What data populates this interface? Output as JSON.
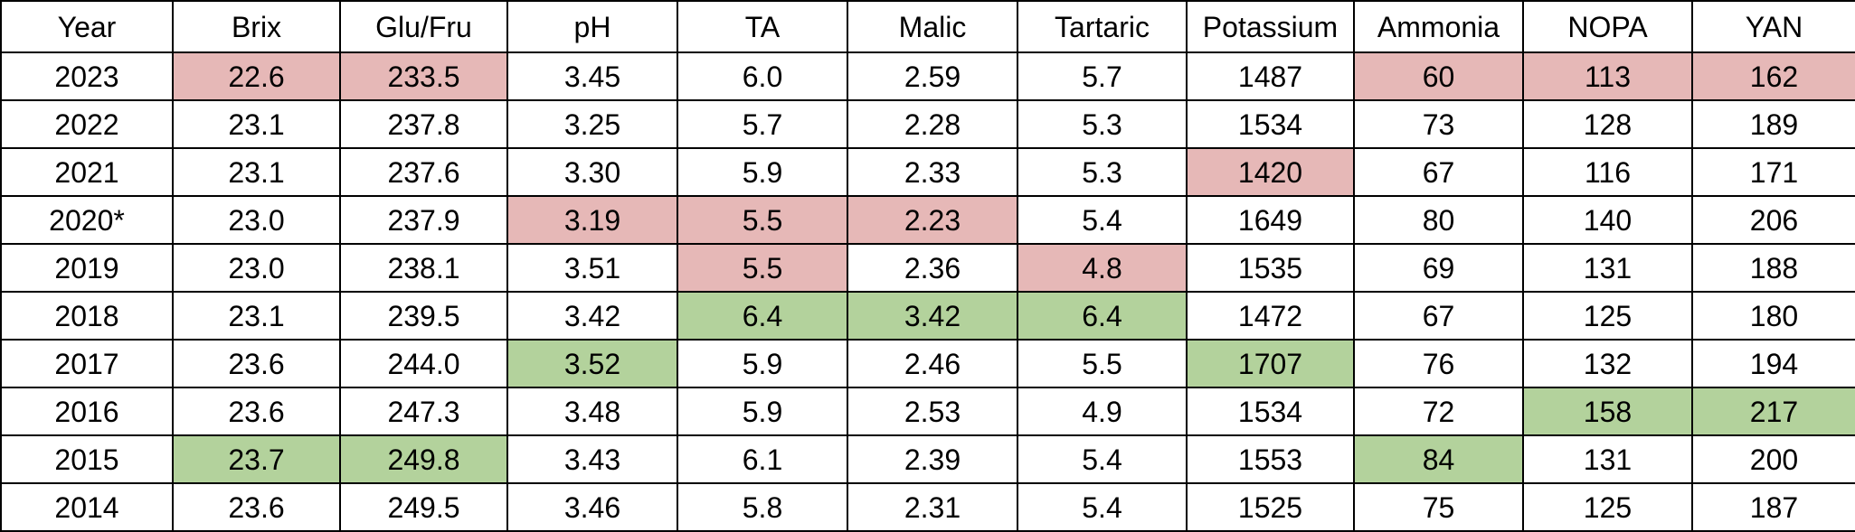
{
  "table": {
    "headers": [
      "Year",
      "Brix",
      "Glu/Fru",
      "pH",
      "TA",
      "Malic",
      "Tartaric",
      "Potassium",
      "Ammonia",
      "NOPA",
      "YAN"
    ],
    "rows": [
      [
        "2023",
        "22.6",
        "233.5",
        "3.45",
        "6.0",
        "2.59",
        "5.7",
        "1487",
        "60",
        "113",
        "162"
      ],
      [
        "2022",
        "23.1",
        "237.8",
        "3.25",
        "5.7",
        "2.28",
        "5.3",
        "1534",
        "73",
        "128",
        "189"
      ],
      [
        "2021",
        "23.1",
        "237.6",
        "3.30",
        "5.9",
        "2.33",
        "5.3",
        "1420",
        "67",
        "116",
        "171"
      ],
      [
        "2020*",
        "23.0",
        "237.9",
        "3.19",
        "5.5",
        "2.23",
        "5.4",
        "1649",
        "80",
        "140",
        "206"
      ],
      [
        "2019",
        "23.0",
        "238.1",
        "3.51",
        "5.5",
        "2.36",
        "4.8",
        "1535",
        "69",
        "131",
        "188"
      ],
      [
        "2018",
        "23.1",
        "239.5",
        "3.42",
        "6.4",
        "3.42",
        "6.4",
        "1472",
        "67",
        "125",
        "180"
      ],
      [
        "2017",
        "23.6",
        "244.0",
        "3.52",
        "5.9",
        "2.46",
        "5.5",
        "1707",
        "76",
        "132",
        "194"
      ],
      [
        "2016",
        "23.6",
        "247.3",
        "3.48",
        "5.9",
        "2.53",
        "4.9",
        "1534",
        "72",
        "158",
        "217"
      ],
      [
        "2015",
        "23.7",
        "249.8",
        "3.43",
        "6.1",
        "2.39",
        "5.4",
        "1553",
        "84",
        "131",
        "200"
      ],
      [
        "2014",
        "23.6",
        "249.5",
        "3.46",
        "5.8",
        "2.31",
        "5.4",
        "1525",
        "75",
        "125",
        "187"
      ]
    ],
    "highlight_colors": {
      "low": "#e6b8b7",
      "high": "#b3d29c"
    },
    "highlights": [
      [
        "",
        "low",
        "low",
        "",
        "",
        "",
        "",
        "",
        "low",
        "low",
        "low"
      ],
      [
        "",
        "",
        "",
        "",
        "",
        "",
        "",
        "",
        "",
        "",
        ""
      ],
      [
        "",
        "",
        "",
        "",
        "",
        "",
        "",
        "low",
        "",
        "",
        ""
      ],
      [
        "",
        "",
        "",
        "low",
        "low",
        "low",
        "",
        "",
        "",
        "",
        ""
      ],
      [
        "",
        "",
        "",
        "",
        "low",
        "",
        "low",
        "",
        "",
        "",
        ""
      ],
      [
        "",
        "",
        "",
        "",
        "high",
        "high",
        "high",
        "",
        "",
        "",
        ""
      ],
      [
        "",
        "",
        "",
        "high",
        "",
        "",
        "",
        "high",
        "",
        "",
        ""
      ],
      [
        "",
        "",
        "",
        "",
        "",
        "",
        "",
        "",
        "",
        "high",
        "high"
      ],
      [
        "",
        "high",
        "high",
        "",
        "",
        "",
        "",
        "",
        "high",
        "",
        ""
      ],
      [
        "",
        "",
        "",
        "",
        "",
        "",
        "",
        "",
        "",
        "",
        ""
      ]
    ]
  }
}
